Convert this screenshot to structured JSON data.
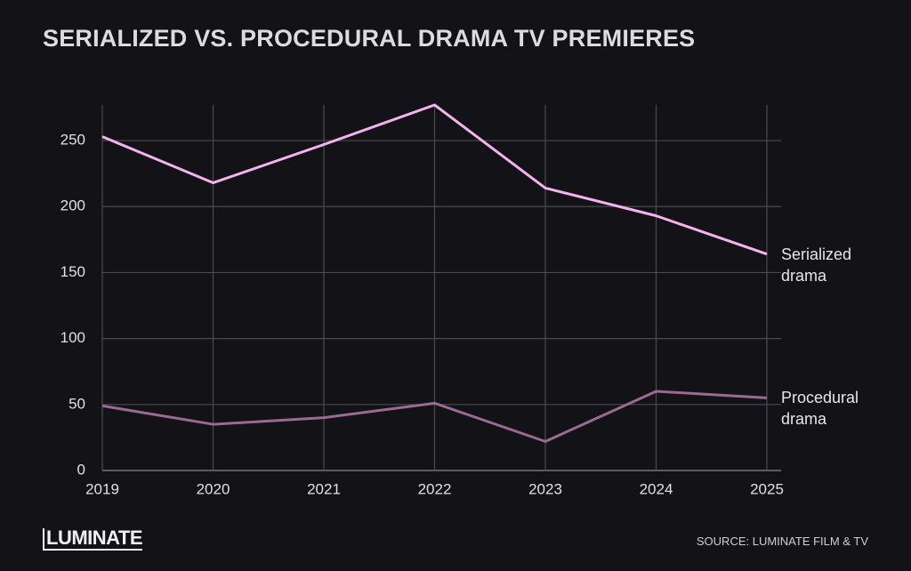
{
  "chart_data": {
    "type": "line",
    "title": "SERIALIZED VS. PROCEDURAL DRAMA TV PREMIERES",
    "categories": [
      "2019",
      "2020",
      "2021",
      "2022",
      "2023",
      "2024",
      "2025"
    ],
    "series": [
      {
        "name": "Serialized drama",
        "color": "#f4b3ee",
        "values": [
          253,
          218,
          247,
          277,
          214,
          193,
          164
        ]
      },
      {
        "name": "Procedural drama",
        "color": "#9a6a93",
        "values": [
          49,
          35,
          40,
          51,
          22,
          60,
          55
        ]
      }
    ],
    "ylim": [
      0,
      277
    ],
    "yticks": [
      0,
      50,
      100,
      150,
      200,
      250
    ],
    "grid": true,
    "logo": "LUMINATE",
    "source": "SOURCE: LUMINATE FILM & TV"
  }
}
